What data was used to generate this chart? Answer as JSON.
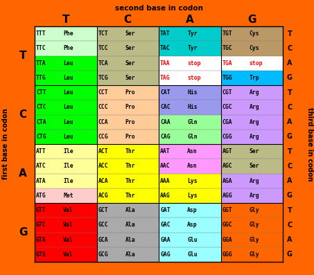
{
  "title_top": "second base in codon",
  "title_left": "first base in codon",
  "title_right": "third base in codon",
  "second_bases": [
    "T",
    "C",
    "A",
    "G"
  ],
  "first_bases": [
    "T",
    "C",
    "A",
    "G"
  ],
  "third_bases": [
    "T",
    "C",
    "A",
    "G"
  ],
  "bg_color": "#FF6600",
  "cells": [
    {
      "row": 0,
      "col": 0,
      "codons": [
        "TTT",
        "TTC",
        "TTA",
        "TTG"
      ],
      "aminos": [
        "Phe",
        "Phe",
        "Leu",
        "Leu"
      ],
      "colors": [
        "#CCFFCC",
        "#CCFFCC",
        "#00FF00",
        "#00FF00"
      ],
      "text_colors": [
        "#000000",
        "#000000",
        "#000000",
        "#000000"
      ]
    },
    {
      "row": 0,
      "col": 1,
      "codons": [
        "TCT",
        "TCC",
        "TCA",
        "TCG"
      ],
      "aminos": [
        "Ser",
        "Ser",
        "Ser",
        "Ser"
      ],
      "colors": [
        "#BBBB88",
        "#BBBB88",
        "#BBBB88",
        "#BBBB88"
      ],
      "text_colors": [
        "#000000",
        "#000000",
        "#000000",
        "#000000"
      ]
    },
    {
      "row": 0,
      "col": 2,
      "codons": [
        "TAT",
        "TAC",
        "TAA",
        "TAG"
      ],
      "aminos": [
        "Tyr",
        "Tyr",
        "stop",
        "stop"
      ],
      "colors": [
        "#00CCCC",
        "#00CCCC",
        "#FFFFFF",
        "#FFFFFF"
      ],
      "text_colors": [
        "#000000",
        "#000000",
        "#FF0000",
        "#FF0000"
      ]
    },
    {
      "row": 0,
      "col": 3,
      "codons": [
        "TGT",
        "TGC",
        "TGA",
        "TGG"
      ],
      "aminos": [
        "Cys",
        "Cys",
        "stop",
        "Trp"
      ],
      "colors": [
        "#BB9966",
        "#BB9966",
        "#FFFFFF",
        "#00BBFF"
      ],
      "text_colors": [
        "#000000",
        "#000000",
        "#FF0000",
        "#000000"
      ]
    },
    {
      "row": 1,
      "col": 0,
      "codons": [
        "CTT",
        "CTC",
        "CTA",
        "CTG"
      ],
      "aminos": [
        "Leu",
        "Leu",
        "Leu",
        "Leu"
      ],
      "colors": [
        "#00FF00",
        "#00FF00",
        "#00FF00",
        "#00FF00"
      ],
      "text_colors": [
        "#000000",
        "#000000",
        "#000000",
        "#000000"
      ]
    },
    {
      "row": 1,
      "col": 1,
      "codons": [
        "CCT",
        "CCC",
        "CCA",
        "CCG"
      ],
      "aminos": [
        "Pro",
        "Pro",
        "Pro",
        "Pro"
      ],
      "colors": [
        "#FFCC99",
        "#FFCC99",
        "#FFCC99",
        "#FFCC99"
      ],
      "text_colors": [
        "#000000",
        "#000000",
        "#000000",
        "#000000"
      ]
    },
    {
      "row": 1,
      "col": 2,
      "codons": [
        "CAT",
        "CAC",
        "CAA",
        "CAG"
      ],
      "aminos": [
        "His",
        "His",
        "Gln",
        "Gln"
      ],
      "colors": [
        "#9999EE",
        "#9999EE",
        "#99FF99",
        "#99FF99"
      ],
      "text_colors": [
        "#000000",
        "#000000",
        "#000000",
        "#000000"
      ]
    },
    {
      "row": 1,
      "col": 3,
      "codons": [
        "CGT",
        "CGC",
        "CGA",
        "CGG"
      ],
      "aminos": [
        "Arg",
        "Arg",
        "Arg",
        "Arg"
      ],
      "colors": [
        "#CC99FF",
        "#CC99FF",
        "#CC99FF",
        "#CC99FF"
      ],
      "text_colors": [
        "#000000",
        "#000000",
        "#000000",
        "#000000"
      ]
    },
    {
      "row": 2,
      "col": 0,
      "codons": [
        "ATT",
        "ATC",
        "ATA",
        "ATG"
      ],
      "aminos": [
        "Ile",
        "Ile",
        "Ile",
        "Met"
      ],
      "colors": [
        "#FFFF99",
        "#FFFF99",
        "#FFFF99",
        "#FFCCCC"
      ],
      "text_colors": [
        "#000000",
        "#000000",
        "#000000",
        "#000000"
      ]
    },
    {
      "row": 2,
      "col": 1,
      "codons": [
        "ACT",
        "ACC",
        "ACA",
        "ACG"
      ],
      "aminos": [
        "Thr",
        "Thr",
        "Thr",
        "Thr"
      ],
      "colors": [
        "#FFFF00",
        "#FFFF00",
        "#FFFF00",
        "#FFFF00"
      ],
      "text_colors": [
        "#000000",
        "#000000",
        "#000000",
        "#000000"
      ]
    },
    {
      "row": 2,
      "col": 2,
      "codons": [
        "AAT",
        "AAC",
        "AAA",
        "AAG"
      ],
      "aminos": [
        "Asn",
        "Asn",
        "Lys",
        "Lys"
      ],
      "colors": [
        "#FF99FF",
        "#FF99FF",
        "#FFFF00",
        "#FFFF00"
      ],
      "text_colors": [
        "#000000",
        "#000000",
        "#000000",
        "#000000"
      ]
    },
    {
      "row": 2,
      "col": 3,
      "codons": [
        "AGT",
        "AGC",
        "AGA",
        "AGG"
      ],
      "aminos": [
        "Ser",
        "Ser",
        "Arg",
        "Arg"
      ],
      "colors": [
        "#BBBB88",
        "#BBBB88",
        "#CC99FF",
        "#CC99FF"
      ],
      "text_colors": [
        "#000000",
        "#000000",
        "#000000",
        "#000000"
      ]
    },
    {
      "row": 3,
      "col": 0,
      "codons": [
        "GTT",
        "GTC",
        "GTA",
        "GTG"
      ],
      "aminos": [
        "Val",
        "Val",
        "Val",
        "Val"
      ],
      "colors": [
        "#FF0000",
        "#FF0000",
        "#FF0000",
        "#FF0000"
      ],
      "text_colors": [
        "#000000",
        "#000000",
        "#000000",
        "#000000"
      ]
    },
    {
      "row": 3,
      "col": 1,
      "codons": [
        "GCT",
        "GCC",
        "GCA",
        "GCG"
      ],
      "aminos": [
        "Ala",
        "Ala",
        "Ala",
        "Ala"
      ],
      "colors": [
        "#AAAAAA",
        "#AAAAAA",
        "#AAAAAA",
        "#AAAAAA"
      ],
      "text_colors": [
        "#000000",
        "#000000",
        "#000000",
        "#000000"
      ]
    },
    {
      "row": 3,
      "col": 2,
      "codons": [
        "GAT",
        "GAC",
        "GAA",
        "GAG"
      ],
      "aminos": [
        "Asp",
        "Asp",
        "Glu",
        "Glu"
      ],
      "colors": [
        "#99FFFF",
        "#99FFFF",
        "#99FFFF",
        "#99FFFF"
      ],
      "text_colors": [
        "#000000",
        "#000000",
        "#000000",
        "#000000"
      ]
    },
    {
      "row": 3,
      "col": 3,
      "codons": [
        "GGT",
        "GGC",
        "GGA",
        "GGG"
      ],
      "aminos": [
        "Gly",
        "Gly",
        "Gly",
        "Gly"
      ],
      "colors": [
        "#FF6600",
        "#FF6600",
        "#FF6600",
        "#FF6600"
      ],
      "text_colors": [
        "#000000",
        "#000000",
        "#000000",
        "#000000"
      ]
    }
  ]
}
